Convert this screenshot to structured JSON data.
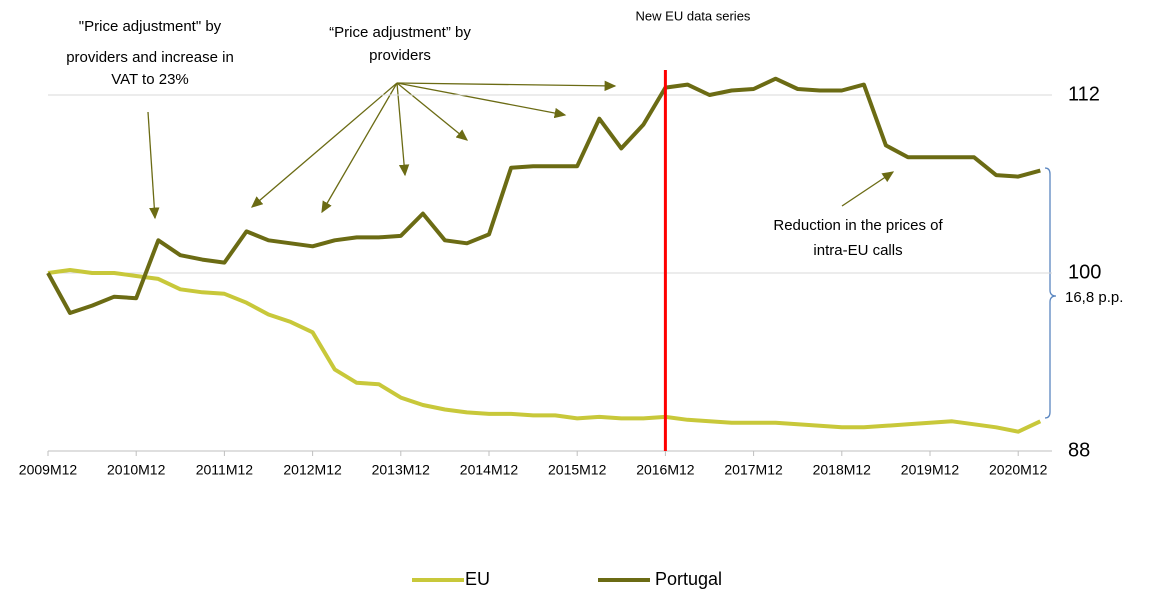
{
  "chart_data": {
    "type": "line",
    "categories": [
      "2009M12",
      null,
      null,
      null,
      "2010M12",
      null,
      null,
      null,
      "2011M12",
      null,
      null,
      null,
      "2012M12",
      null,
      null,
      null,
      "2013M12",
      null,
      null,
      null,
      "2014M12",
      null,
      null,
      null,
      "2015M12",
      null,
      null,
      null,
      "2016M12",
      null,
      null,
      null,
      "2017M12",
      null,
      null,
      null,
      "2018M12",
      null,
      null,
      null,
      "2019M12",
      null,
      null,
      null,
      "2020M12",
      null
    ],
    "series": [
      {
        "name": "EU",
        "color": "#c8c83a",
        "values": [
          100.0,
          100.2,
          100.0,
          100.0,
          99.8,
          99.6,
          98.9,
          98.7,
          98.6,
          98.0,
          97.2,
          96.7,
          96.0,
          93.5,
          92.6,
          92.5,
          91.6,
          91.1,
          90.8,
          90.6,
          90.5,
          90.5,
          90.4,
          90.4,
          90.2,
          90.3,
          90.2,
          90.2,
          90.3,
          90.1,
          90.0,
          89.9,
          89.9,
          89.9,
          89.8,
          89.7,
          89.6,
          89.6,
          89.7,
          89.8,
          89.9,
          90.0,
          89.8,
          89.6,
          89.3,
          90.0
        ]
      },
      {
        "name": "Portugal",
        "color": "#6b6b14",
        "values": [
          100.0,
          97.3,
          97.8,
          98.4,
          98.3,
          102.2,
          101.2,
          100.9,
          100.7,
          102.8,
          102.2,
          102.0,
          101.8,
          102.2,
          102.4,
          102.4,
          102.5,
          104.0,
          102.2,
          102.0,
          102.6,
          107.1,
          107.2,
          107.2,
          107.2,
          110.4,
          108.4,
          110.0,
          112.5,
          112.7,
          112.0,
          112.3,
          112.4,
          113.1,
          112.4,
          112.3,
          112.3,
          112.7,
          108.6,
          107.8,
          107.8,
          107.8,
          107.8,
          106.6,
          106.5,
          106.9
        ]
      }
    ],
    "ylim": [
      88,
      114
    ],
    "yticks": [
      88,
      100,
      112
    ],
    "grid": true,
    "annotations": [
      {
        "lines": [
          "\"Price adjustment\" by",
          "providers and increase in",
          "VAT to 23%"
        ]
      },
      {
        "lines": [
          "“Price adjustment” by",
          "providers"
        ]
      },
      {
        "lines": [
          "New EU data series"
        ]
      },
      {
        "lines": [
          "Reduction in the prices of",
          "intra-EU calls"
        ]
      },
      {
        "lines": [
          "16,8 p.p."
        ]
      }
    ]
  }
}
